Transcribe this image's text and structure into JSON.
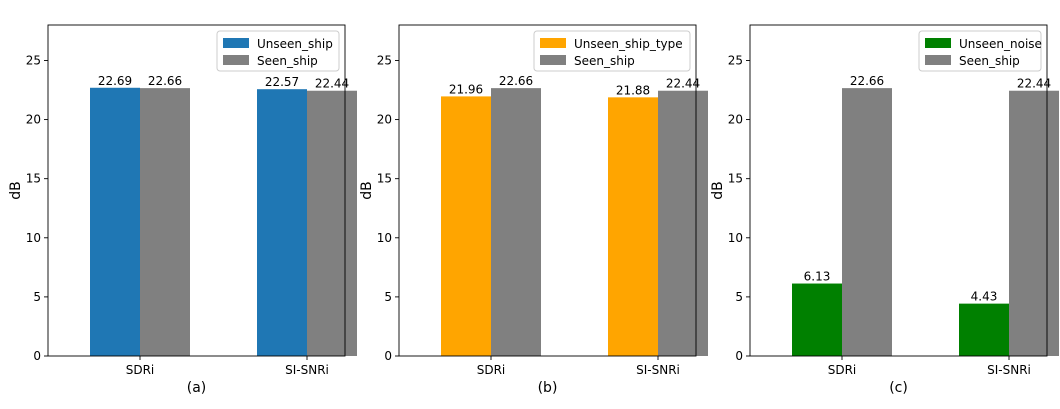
{
  "chart_data": [
    {
      "type": "bar",
      "subplot_label": "(a)",
      "categories": [
        "SDRi",
        "SI-SNRi"
      ],
      "ylabel": "dB",
      "ylim": [
        0,
        28
      ],
      "yticks": [
        0,
        5,
        10,
        15,
        20,
        25
      ],
      "grid": false,
      "legend_position": "top-right",
      "series": [
        {
          "name": "Unseen_ship",
          "color": "#1f77b4",
          "values": [
            22.69,
            22.57
          ],
          "value_labels": [
            "22.69",
            "22.57"
          ]
        },
        {
          "name": "Seen_ship",
          "color": "#808080",
          "values": [
            22.66,
            22.44
          ],
          "value_labels": [
            "22.66",
            "22.44"
          ]
        }
      ]
    },
    {
      "type": "bar",
      "subplot_label": "(b)",
      "categories": [
        "SDRi",
        "SI-SNRi"
      ],
      "ylabel": "dB",
      "ylim": [
        0,
        28
      ],
      "yticks": [
        0,
        5,
        10,
        15,
        20,
        25
      ],
      "grid": false,
      "legend_position": "top-right",
      "series": [
        {
          "name": "Unseen_ship_type",
          "color": "#ffa500",
          "values": [
            21.96,
            21.88
          ],
          "value_labels": [
            "21.96",
            "21.88"
          ]
        },
        {
          "name": "Seen_ship",
          "color": "#808080",
          "values": [
            22.66,
            22.44
          ],
          "value_labels": [
            "22.66",
            "22.44"
          ]
        }
      ]
    },
    {
      "type": "bar",
      "subplot_label": "(c)",
      "categories": [
        "SDRi",
        "SI-SNRi"
      ],
      "ylabel": "dB",
      "ylim": [
        0,
        28
      ],
      "yticks": [
        0,
        5,
        10,
        15,
        20,
        25
      ],
      "grid": false,
      "legend_position": "top-right",
      "series": [
        {
          "name": "Unseen_noise",
          "color": "#008000",
          "values": [
            6.13,
            4.43
          ],
          "value_labels": [
            "6.13",
            "4.43"
          ]
        },
        {
          "name": "Seen_ship",
          "color": "#808080",
          "values": [
            22.66,
            22.44
          ],
          "value_labels": [
            "22.66",
            "22.44"
          ]
        }
      ]
    }
  ]
}
